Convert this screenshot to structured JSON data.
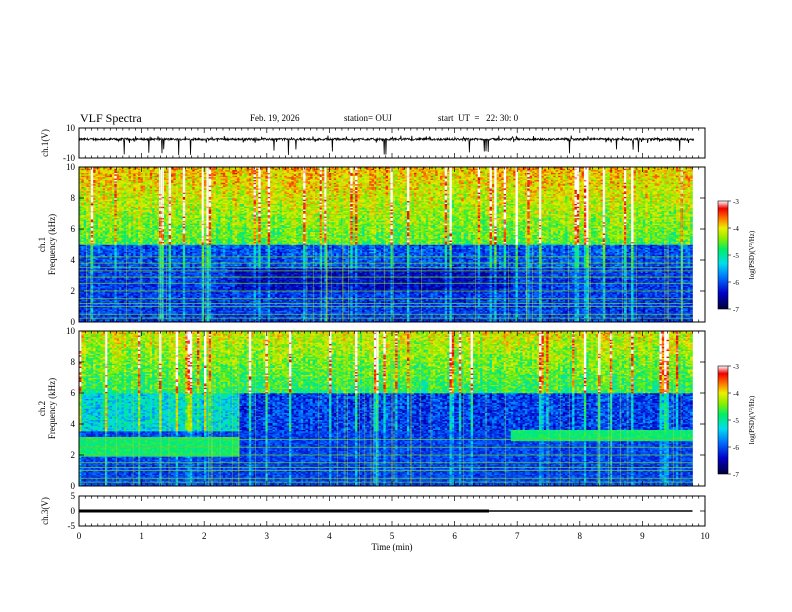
{
  "header": {
    "title": "VLF Spectra",
    "date": "Feb. 19, 2026",
    "station": "station= OUJ",
    "start": "start  UT  =   22: 30: 0"
  },
  "chart_data": [
    {
      "type": "line",
      "panel": "ch1-waveform",
      "ylabel": "ch.1(V)",
      "ylim": [
        -10,
        10
      ],
      "yticks": [
        "10",
        "-10"
      ],
      "xlim": [
        0,
        10
      ],
      "baseline": 2.5,
      "noise": "spiky broadband noise, values mostly between 0 and 5 V with spikes to about -10 V"
    },
    {
      "type": "heatmap",
      "panel": "ch1-spectrogram",
      "ylabel": "ch.1\nFrequency (kHz)",
      "ylim": [
        0,
        10
      ],
      "yticks": [
        "0",
        "2",
        "4",
        "6",
        "8",
        "10"
      ],
      "xlim": [
        0,
        9.8
      ],
      "colorbar_label": "log(PSD)(V²/Hz)",
      "colorbar_ticks": [
        "-3",
        "-4",
        "-5",
        "-6",
        "-7"
      ],
      "colorbar_range": [
        -7,
        -3
      ],
      "features": {
        "upper_band_khz": [
          5,
          10
        ],
        "lower_band_khz": [
          0,
          5
        ],
        "carrier_lines_khz": [
          0.25,
          0.5,
          1.0,
          1.2,
          1.5,
          2.0,
          2.5,
          2.9,
          3.3,
          3.5,
          3.8,
          4.2
        ]
      }
    },
    {
      "type": "heatmap",
      "panel": "ch2-spectrogram",
      "ylabel": "ch.2\nFrequency (kHz)",
      "ylim": [
        0,
        10
      ],
      "yticks": [
        "0",
        "2",
        "4",
        "6",
        "8",
        "10"
      ],
      "xlim": [
        0,
        9.8
      ],
      "colorbar_label": "log(PSD)(V²/Hz)",
      "colorbar_ticks": [
        "-3",
        "-4",
        "-5",
        "-6",
        "-7"
      ],
      "colorbar_range": [
        -7,
        -3
      ],
      "features": {
        "bright_segments": [
          {
            "t": [
              0,
              2.55
            ],
            "f_khz": [
              1.9,
              3.2
            ]
          },
          {
            "t": [
              6.9,
              9.8
            ],
            "f_khz": [
              2.9,
              3.6
            ]
          }
        ]
      }
    },
    {
      "type": "line",
      "panel": "ch3-waveform",
      "ylabel": "ch.3(V)",
      "ylim": [
        -5,
        5
      ],
      "yticks": [
        "5",
        "0",
        "-5"
      ],
      "xlim": [
        0,
        10
      ],
      "xlabel": "Time  (min)",
      "xticks": [
        "0",
        "1",
        "2",
        "3",
        "4",
        "5",
        "6",
        "7",
        "8",
        "9",
        "10"
      ],
      "segments": [
        {
          "t": [
            0,
            6.55
          ],
          "value": 0,
          "weight": "thick"
        },
        {
          "t": [
            6.55,
            9.8
          ],
          "value": 0,
          "weight": "thin"
        }
      ]
    }
  ]
}
